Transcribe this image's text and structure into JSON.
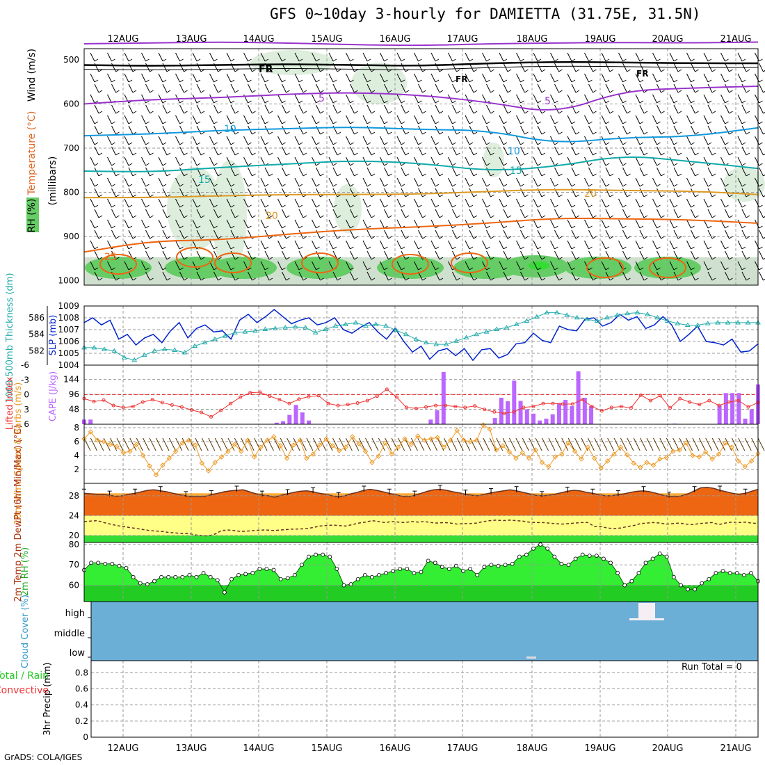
{
  "header": {
    "title": "GFS 0~10day 3-hourly for DAMIETTA (31.75E, 31.5N)",
    "credit": "GrADS: COLA/IGES"
  },
  "chart_data": [
    {
      "id": "profile",
      "type": "contour",
      "ylabels": [
        "Wind (m/s)",
        "Temperature (°C)",
        "RH (%)",
        "(millibars)"
      ],
      "levels": [
        500,
        600,
        700,
        800,
        900,
        1000
      ],
      "dates": [
        "12AUG",
        "13AUG",
        "14AUG",
        "15AUG",
        "16AUG",
        "17AUG",
        "18AUG",
        "19AUG",
        "20AUG",
        "21AUG"
      ],
      "isotherms": [
        {
          "label": "-5",
          "values": [
            464,
            462,
            460,
            462,
            466,
            468,
            464,
            462,
            461,
            462,
            460
          ]
        },
        {
          "label": "FR",
          "values": [
            512,
            514,
            512,
            510,
            512,
            514,
            508,
            505,
            506,
            508,
            508
          ]
        },
        {
          "label": "5",
          "values": [
            600,
            590,
            586,
            578,
            574,
            580,
            596,
            622,
            570,
            564,
            560
          ]
        },
        {
          "label": "10",
          "values": [
            672,
            668,
            660,
            656,
            652,
            658,
            660,
            690,
            676,
            674,
            654
          ]
        },
        {
          "label": "15",
          "values": [
            752,
            754,
            744,
            736,
            728,
            734,
            752,
            742,
            716,
            730,
            746
          ]
        },
        {
          "label": "20",
          "values": [
            812,
            812,
            808,
            805,
            805,
            804,
            798,
            793,
            796,
            797,
            805
          ]
        },
        {
          "label": "25",
          "values": [
            935,
            910,
            908,
            895,
            884,
            878,
            870,
            858,
            860,
            862,
            870
          ]
        }
      ],
      "contour_labels": [
        "-5",
        "FR",
        "5",
        "10",
        "15",
        "20",
        "25"
      ]
    },
    {
      "id": "thickness_slp",
      "type": "line",
      "ylabel_left": "1000-500mb Thickness (dm)",
      "ylabel_right": "SLP (mb)",
      "left_ticks": [
        582,
        584,
        586
      ],
      "right_ticks": [
        1004,
        1005,
        1006,
        1007,
        1008,
        1009
      ],
      "ylim_left": [
        580.3,
        587.4
      ],
      "ylim_right": [
        1004,
        1009
      ],
      "series": [
        {
          "name": "SLP",
          "values": [
            1007.6,
            1008,
            1007.4,
            1007.8,
            1006.2,
            1006.6,
            1005.7,
            1006.3,
            1006.6,
            1005.9,
            1006.9,
            1007.6,
            1006.3,
            1007.1,
            1007.4,
            1006.8,
            1006.9,
            1006.2,
            1007.8,
            1008.3,
            1007.6,
            1008.1,
            1008.7,
            1008.1,
            1007.5,
            1007.8,
            1008,
            1007.4,
            1007.6,
            1008,
            1007,
            1006.7,
            1007.2,
            1007.6,
            1006.8,
            1006.2,
            1007.1,
            1006,
            1005.1,
            1005.6,
            1004.5,
            1005.2,
            1005.4,
            1004.8,
            1005.4,
            1004.4,
            1005.3,
            1005.4,
            1004.6,
            1004.9,
            1005.8,
            1005.9,
            1006.7,
            1006.1,
            1005.9,
            1007.3,
            1007,
            1006.9,
            1007.9,
            1008,
            1007.3,
            1007.6,
            1008.3,
            1007.8,
            1008.1,
            1007.1,
            1007.4,
            1008.1,
            1007.4,
            1006,
            1006.6,
            1007.3,
            1006,
            1005.9,
            1005.7,
            1006.2,
            1005.1,
            1005.2,
            1005.8
          ]
        },
        {
          "name": "Thickness",
          "values": [
            582.4,
            582.4,
            582.2,
            582.0,
            581.2,
            580.9,
            581.5,
            582.0,
            582.2,
            582.1,
            581.8,
            582.6,
            583.0,
            583.4,
            583.8,
            584.2,
            584.3,
            584.4,
            584.6,
            584.7,
            584.8,
            584.9,
            584.8,
            584.2,
            584.6,
            585.0,
            585.2,
            585.4,
            585.0,
            585.2,
            585.0,
            584.5,
            584.0,
            583.4,
            583.0,
            582.8,
            582.8,
            583.2,
            583.6,
            584.0,
            584.3,
            584.6,
            584.8,
            585.2,
            585.6,
            586.1,
            586.6,
            586.6,
            586.3,
            586.0,
            585.8,
            585.6,
            586.0,
            586.3,
            586.5,
            586.6,
            586.4,
            586.0,
            585.6,
            585.3,
            585.1,
            585.1,
            585.3,
            585.4,
            585.4,
            585.4,
            585.4,
            585.4
          ]
        }
      ]
    },
    {
      "id": "cape_li",
      "type": "bar",
      "ylabel_left": "Lifted Index",
      "ylabel_right": "CAPE (J/kg)",
      "left_ticks": [
        "-6",
        "-3",
        "0",
        "3",
        "6"
      ],
      "right_ticks": [
        48,
        96,
        144
      ],
      "ylim_right": [
        0,
        190
      ],
      "ylim_left": [
        -6,
        6
      ],
      "series": [
        {
          "name": "CAPE",
          "values": [
            15,
            15,
            0,
            0,
            0,
            0,
            0,
            0,
            0,
            0,
            0,
            0,
            0,
            0,
            0,
            0,
            0,
            0,
            0,
            0,
            0,
            0,
            0,
            0,
            0,
            0,
            0,
            0,
            0,
            0,
            5,
            10,
            30,
            62,
            38,
            12,
            0,
            0,
            0,
            0,
            0,
            0,
            0,
            0,
            0,
            0,
            0,
            0,
            0,
            0,
            0,
            0,
            0,
            0,
            15,
            45,
            168,
            0,
            0,
            0,
            0,
            0,
            0,
            0,
            20,
            85,
            74,
            140,
            75,
            48,
            34,
            12,
            18,
            32,
            68,
            78,
            58,
            170,
            85,
            58,
            0,
            0,
            0,
            0,
            0,
            0,
            0,
            0,
            0,
            0,
            0,
            0,
            2,
            0,
            0,
            0,
            0,
            0,
            0,
            60,
            100,
            100,
            100,
            18,
            48,
            128
          ]
        },
        {
          "name": "Lifted Index",
          "values": [
            0.8,
            1.4,
            1.1,
            2.2,
            2.6,
            2.4,
            1.5,
            1.0,
            1.6,
            2.1,
            2.5,
            3.1,
            3.6,
            4.5,
            3.2,
            1.8,
            0.5,
            -0.4,
            -0.5,
            0.3,
            1.0,
            1.8,
            0.9,
            0.4,
            0.2,
            1.8,
            2.2,
            2.0,
            1.7,
            1.2,
            0.3,
            -1.1,
            0.5,
            2.6,
            2.8,
            2.5,
            2.2,
            2.2,
            2.4,
            2.6,
            2.3,
            3.0,
            3.5,
            3.8,
            3.5,
            2.6,
            2.4,
            1.8,
            1.8,
            1.9,
            1.9,
            1.0,
            2.4,
            3.3,
            2.6,
            2.4,
            2.7,
            0.1,
            1.2,
            0.2,
            2.7,
            0.8,
            1.5,
            2.0,
            1.2,
            2.2,
            1.5,
            1.2,
            2.5,
            1.6
          ]
        }
      ]
    },
    {
      "id": "wind10m",
      "type": "line",
      "ylabel": "10m Wind Speed & Barbs (m/s)",
      "yticks": [
        2,
        4,
        6,
        8
      ],
      "ylim": [
        0,
        8.5
      ],
      "values": [
        6.4,
        7.4,
        6.2,
        6.0,
        5.6,
        5.3,
        4.4,
        4.6,
        5.6,
        4.0,
        2.5,
        1.2,
        2.6,
        3.6,
        4.6,
        5.8,
        6.2,
        5.5,
        2.9,
        1.8,
        3.0,
        3.8,
        4.6,
        5.6,
        4.6,
        6.2,
        3.8,
        5.2,
        6.2,
        6.7,
        5.4,
        3.6,
        5.5,
        6.2,
        3.6,
        4.2,
        5.5,
        6.4,
        5.4,
        4.7,
        5.2,
        6.7,
        5.7,
        4.6,
        3.0,
        3.9,
        5.8,
        4.2,
        5.2,
        6.4,
        5.6,
        6.8,
        6.2,
        6.4,
        6.6,
        5.2,
        6.2,
        7.6,
        6.2,
        6.0,
        6.2,
        8.4,
        7.8,
        4.8,
        5.4,
        4.5,
        3.6,
        4.4,
        3.6,
        4.8,
        3.0,
        2.4,
        3.8,
        4.2,
        5.8,
        4.6,
        3.5,
        5.2,
        3.6,
        2.2,
        3.2,
        4.2,
        5.2,
        4.1,
        2.9,
        2.3,
        3.0,
        2.6,
        3.5,
        3.7,
        4.6,
        4.8,
        5.8,
        4.0,
        3.8,
        4.5,
        3.5,
        4.2,
        5.8,
        5.2,
        3.2,
        2.4,
        3.2,
        4.3
      ]
    },
    {
      "id": "temp2m",
      "type": "area",
      "ylabel": "2m Temp 2m DewPt (6hr Min/Max) (°C)",
      "yticks": [
        20,
        24,
        28
      ],
      "ylim": [
        18.6,
        30.5
      ],
      "series": [
        {
          "name": "Temp",
          "values": [
            28.5,
            28.4,
            28.3,
            28.3,
            28.1,
            27.9,
            28.0,
            28.3,
            28.5,
            28.8,
            29.1,
            29.2,
            29.0,
            28.8,
            28.5,
            28.2,
            28.0,
            27.8,
            27.8,
            27.9,
            28.2,
            28.5,
            28.8,
            29.0,
            29.1,
            29.2,
            28.8,
            28.4,
            28.1,
            28.0,
            27.7,
            28.1,
            28.4,
            28.7,
            28.9,
            29.0,
            28.8,
            28.5,
            28.3,
            28.0,
            27.8,
            28.0,
            28.4,
            28.7,
            29.1,
            29.3,
            29.1,
            28.8,
            28.5,
            28.2,
            27.9,
            27.8,
            28.1,
            28.5,
            28.9,
            29.2,
            29.3,
            29.1,
            28.8,
            28.6,
            28.3,
            28.1,
            28.0,
            28.3,
            28.6,
            28.8,
            29.0,
            29.2,
            29.0,
            28.7,
            28.4,
            28.1,
            28.0,
            28.1,
            28.3,
            28.6,
            28.9,
            29.1,
            29.0,
            28.7,
            28.5,
            28.2,
            28.0,
            28.0,
            28.2,
            28.4,
            28.7,
            28.9,
            29.0,
            28.8,
            28.5,
            28.1,
            27.9,
            27.8,
            28.0,
            28.4,
            29.0,
            29.6,
            29.7,
            29.5,
            29.1,
            28.8,
            28.5,
            28.3,
            28.5,
            28.9,
            29.3
          ]
        },
        {
          "name": "DewPt",
          "values": [
            22.8,
            22.9,
            23.0,
            22.6,
            22.3,
            22.0,
            21.8,
            21.6,
            21.4,
            21.2,
            21.0,
            20.9,
            20.8,
            20.6,
            20.5,
            20.4,
            20.4,
            20.1,
            20.0,
            19.9,
            20.3,
            21.0,
            21.1,
            21.0,
            20.8,
            20.9,
            21.0,
            21.1,
            21.1,
            21.0,
            21.1,
            21.2,
            21.3,
            21.3,
            21.4,
            21.6,
            21.9,
            22.0,
            22.1,
            22.0,
            21.9,
            22.2,
            22.5,
            22.7,
            23.0,
            22.8,
            22.6,
            22.8,
            22.7,
            22.6,
            22.8,
            22.7,
            22.8,
            22.6,
            22.5,
            22.6,
            22.5,
            22.3,
            22.4,
            22.4,
            22.5,
            22.8,
            23.0,
            23.1,
            23.0,
            23.1,
            23.0,
            22.9,
            22.7,
            22.6,
            22.6,
            22.5,
            22.4,
            22.3,
            22.4,
            22.5,
            22.6,
            22.6,
            21.8,
            21.8,
            21.5,
            21.4,
            21.5,
            21.8,
            22.0,
            22.4,
            22.5,
            22.6,
            22.5,
            22.3,
            22.4,
            22.5,
            22.3,
            22.2,
            22.4,
            22.5,
            22.6,
            22.2,
            22.5,
            22.7,
            22.6,
            22.7,
            22.5,
            22.4
          ]
        }
      ]
    },
    {
      "id": "rh2m",
      "type": "area",
      "ylabel": "2m RH (%)",
      "yticks": [
        60,
        70,
        80
      ],
      "ylim": [
        52,
        81
      ],
      "values": [
        67.5,
        71,
        71,
        70.5,
        70.5,
        69.5,
        68.5,
        64,
        61,
        60.5,
        62,
        64,
        64,
        64,
        64,
        65,
        64,
        66,
        64,
        62.5,
        56.5,
        63,
        65,
        65.5,
        66,
        68,
        68,
        67.5,
        63,
        63.5,
        65,
        70,
        74,
        75,
        75,
        74,
        68,
        60,
        60.5,
        63,
        65,
        64,
        65,
        66,
        67,
        68,
        68,
        66,
        66.5,
        72,
        71,
        69,
        68,
        69.5,
        67,
        68,
        65,
        69,
        70,
        69.5,
        70,
        70.5,
        74,
        75,
        78,
        80,
        78,
        74,
        70.5,
        70,
        73,
        75,
        74.5,
        74.5,
        73,
        71,
        66,
        60,
        62,
        66,
        71,
        73,
        75.5,
        74,
        64,
        60,
        58,
        58,
        61,
        63,
        66,
        67,
        66,
        66,
        65,
        66,
        62
      ]
    },
    {
      "id": "cloud",
      "type": "heatmap",
      "ylabel": "Cloud Cover (%)",
      "categories": [
        "high",
        "middle",
        "low"
      ],
      "events": [
        {
          "day": "19AUG-20AUG",
          "layer": "high",
          "value": "brief high cloud"
        },
        {
          "day": "18AUG",
          "layer": "low",
          "value": "trace low cloud"
        }
      ]
    },
    {
      "id": "precip",
      "type": "bar",
      "ylabel": "3hr Precip (mm)",
      "legend_total": "Total / Rain",
      "legend_conv": "Convective",
      "run_total": "Run Total = 0",
      "yticks": [
        "0",
        "0.2",
        "0.4",
        "0.6",
        "0.8"
      ],
      "ylim": [
        0,
        0.95
      ],
      "values": []
    }
  ]
}
